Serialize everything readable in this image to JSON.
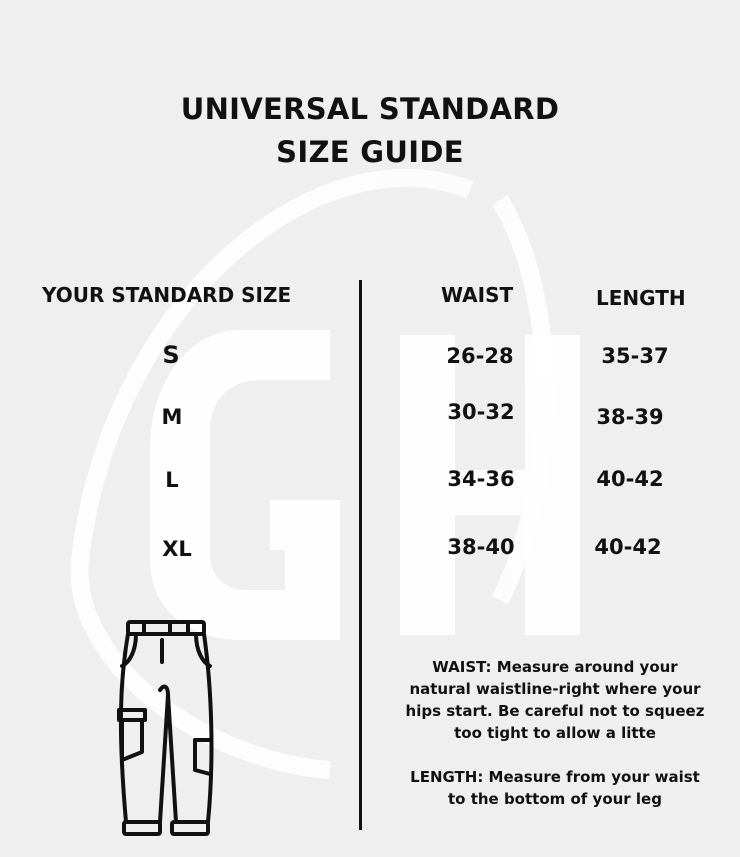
{
  "title": {
    "line1": "UNIVERSAL STANDARD",
    "line2": "SIZE GUIDE"
  },
  "table": {
    "headers": {
      "size": "YOUR STANDARD SIZE",
      "waist": "WAIST",
      "length": "LENGTH"
    },
    "rows": [
      {
        "size": "S",
        "waist": "26-28",
        "length": "35-37"
      },
      {
        "size": "M",
        "waist": "30-32",
        "length": "38-39"
      },
      {
        "size": "L",
        "waist": "34-36",
        "length": "40-42"
      },
      {
        "size": "XL",
        "waist": "38-40",
        "length": "40-42"
      }
    ]
  },
  "notes": {
    "waist": "WAIST: Measure around your natural waistline-right where your hips start. Be careful not to squeez too tight to allow a litte",
    "length": "LENGTH: Measure from your waist to the bottom of your leg"
  },
  "watermark": {
    "text": "GH",
    "color": "#ffffff"
  },
  "icons": {
    "illustration": "pants-icon"
  },
  "colors": {
    "background": "#efefef",
    "text": "#111111"
  }
}
